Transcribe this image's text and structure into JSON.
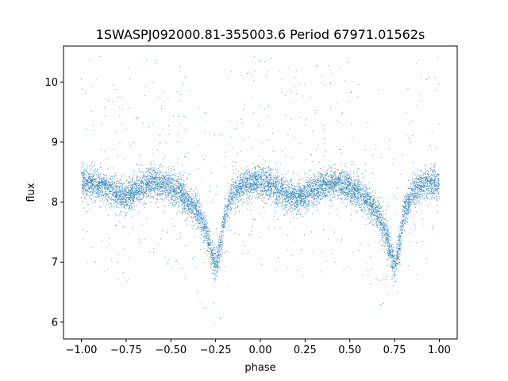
{
  "chart_data": {
    "type": "scatter",
    "title": "1SWASPJ092000.81-355003.6 Period 67971.01562s",
    "xlabel": "phase",
    "ylabel": "flux",
    "xlim": [
      -1.1,
      1.1
    ],
    "ylim": [
      5.72,
      10.6
    ],
    "xticks": [
      -1.0,
      -0.75,
      -0.5,
      -0.25,
      0.0,
      0.25,
      0.5,
      0.75,
      1.0
    ],
    "xtick_labels": [
      "−1.00",
      "−0.75",
      "−0.50",
      "−0.25",
      "0.00",
      "0.25",
      "0.50",
      "0.75",
      "1.00"
    ],
    "yticks": [
      6,
      7,
      8,
      9,
      10
    ],
    "ytick_labels": [
      "6",
      "7",
      "8",
      "9",
      "10"
    ],
    "grid": false,
    "series": [
      {
        "color": "#1f77b4",
        "x": [
          -1.0,
          -0.95,
          -0.9,
          -0.85,
          -0.8,
          -0.75,
          -0.7,
          -0.65,
          -0.6,
          -0.55,
          -0.5,
          -0.45,
          -0.4,
          -0.35,
          -0.3,
          -0.28,
          -0.26,
          -0.25,
          -0.24,
          -0.22,
          -0.2,
          -0.15,
          -0.1,
          -0.05,
          0.0,
          0.05,
          0.1,
          0.15,
          0.2,
          0.25,
          0.3,
          0.35,
          0.4,
          0.45,
          0.5,
          0.55,
          0.6,
          0.65,
          0.7,
          0.72,
          0.74,
          0.75,
          0.76,
          0.78,
          0.8,
          0.85,
          0.9,
          0.95,
          1.0
        ],
        "y": [
          8.3,
          8.32,
          8.28,
          8.22,
          8.12,
          8.08,
          8.18,
          8.28,
          8.33,
          8.3,
          8.25,
          8.15,
          8.0,
          7.85,
          7.5,
          7.25,
          7.02,
          6.95,
          7.02,
          7.3,
          7.8,
          8.15,
          8.28,
          8.33,
          8.35,
          8.3,
          8.22,
          8.14,
          8.08,
          8.1,
          8.2,
          8.28,
          8.32,
          8.3,
          8.25,
          8.15,
          8.0,
          7.85,
          7.5,
          7.25,
          7.02,
          6.95,
          7.02,
          7.3,
          7.8,
          8.15,
          8.28,
          8.31,
          8.3
        ],
        "scatter_spread": 0.13
      }
    ]
  }
}
